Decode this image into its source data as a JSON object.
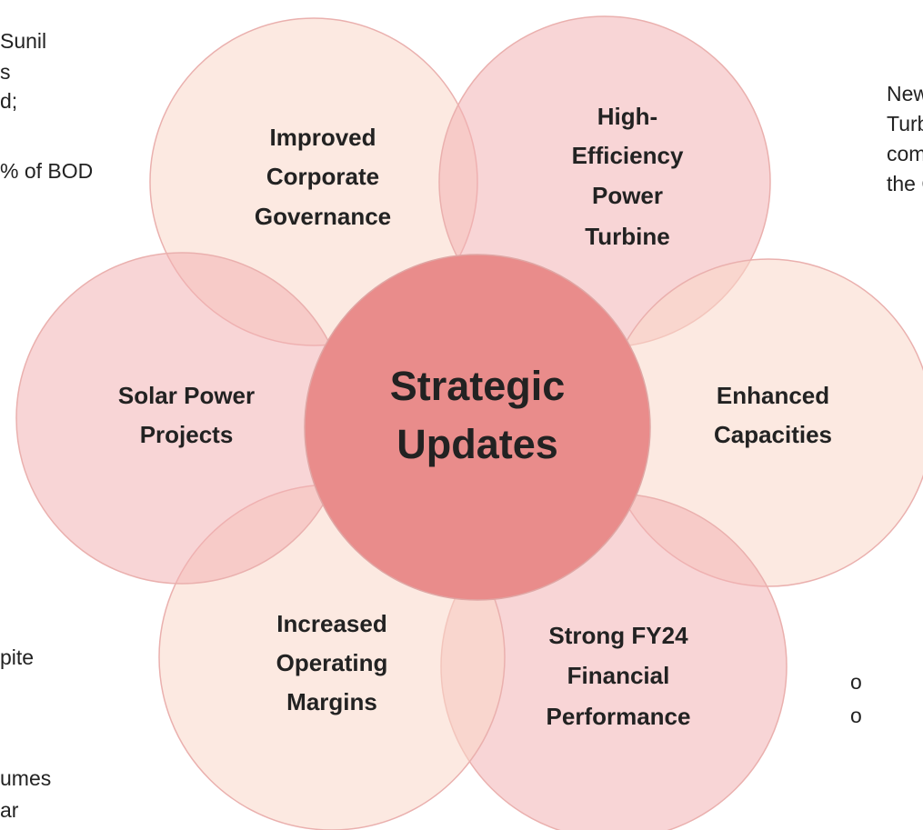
{
  "background_text": {
    "top_left": [
      "Sunil",
      "s",
      "d;",
      "% of BOD"
    ],
    "top_right": [
      "New",
      "Turb",
      "com",
      "the C"
    ],
    "bottom_left": [
      "pite",
      "umes",
      "ar"
    ],
    "bottom_right": [
      "o",
      "o"
    ]
  },
  "center": {
    "label": [
      "Strategic",
      "Updates"
    ]
  },
  "petals": [
    {
      "label": [
        "Improved",
        "Corporate",
        "Governance"
      ]
    },
    {
      "label": [
        "High-",
        "Efficiency",
        "Power",
        "Turbine"
      ]
    },
    {
      "label": [
        "Enhanced",
        "Capacities"
      ]
    },
    {
      "label": [
        "Strong FY24",
        "Financial",
        "Performance"
      ]
    },
    {
      "label": [
        "Increased",
        "Operating",
        "Margins"
      ]
    },
    {
      "label": [
        "Solar Power",
        "Projects"
      ]
    }
  ]
}
